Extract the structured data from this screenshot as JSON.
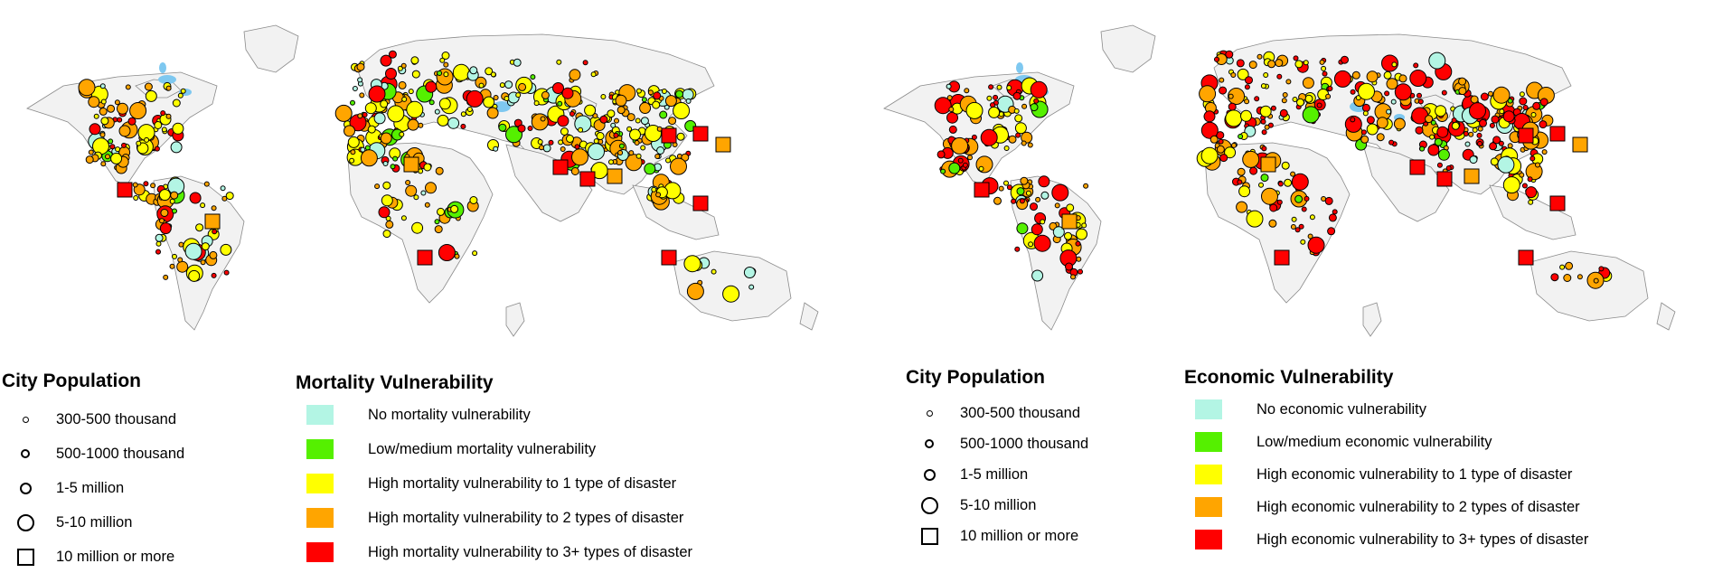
{
  "colors": {
    "none": "#b3f5e4",
    "low": "#55f000",
    "one": "#ffff00",
    "two": "#ffa500",
    "three": "#ff0000",
    "land": "#f2f2f2",
    "border": "#8a8a8a",
    "water": "#7ec8f0"
  },
  "population_legend": {
    "title": "City Population",
    "items": [
      {
        "label": "300-500 thousand",
        "shape": "circle-xs"
      },
      {
        "label": "500-1000 thousand",
        "shape": "circle-s"
      },
      {
        "label": "1-5 million",
        "shape": "circle-m"
      },
      {
        "label": "5-10 million",
        "shape": "circle-l"
      },
      {
        "label": "10 million or more",
        "shape": "square"
      }
    ]
  },
  "maps": [
    {
      "id": "mortality",
      "legend_title": "Mortality Vulnerability",
      "legend_items": [
        {
          "label": "No mortality vulnerability",
          "color_key": "none"
        },
        {
          "label": "Low/medium mortality vulnerability",
          "color_key": "low"
        },
        {
          "label": "High mortality vulnerability to 1 type of disaster",
          "color_key": "one"
        },
        {
          "label": "High mortality vulnerability to 2 types of disaster",
          "color_key": "two"
        },
        {
          "label": "High mortality vulnerability to 3+ types of disaster",
          "color_key": "three"
        }
      ]
    },
    {
      "id": "economic",
      "legend_title": "Economic Vulnerability",
      "legend_items": [
        {
          "label": "No economic vulnerability",
          "color_key": "none"
        },
        {
          "label": "Low/medium economic vulnerability",
          "color_key": "low"
        },
        {
          "label": "High economic vulnerability to 1 type of disaster",
          "color_key": "one"
        },
        {
          "label": "High economic vulnerability to 2 types of disaster",
          "color_key": "two"
        },
        {
          "label": "High economic vulnerability to 3+ types of disaster",
          "color_key": "three"
        }
      ]
    }
  ]
}
